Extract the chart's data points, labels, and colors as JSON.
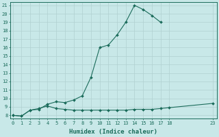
{
  "line1_x": [
    0,
    1,
    2,
    3,
    4,
    5,
    6,
    7,
    8,
    9,
    10,
    11,
    12,
    13,
    14,
    15,
    16,
    17
  ],
  "line1_y": [
    8,
    7.9,
    8.6,
    8.7,
    9.3,
    9.6,
    9.5,
    9.8,
    10.3,
    12.5,
    16.0,
    16.3,
    17.5,
    19.0,
    21.0,
    20.5,
    19.8,
    19.0
  ],
  "line2_x": [
    0,
    1,
    2,
    3,
    4,
    5,
    6,
    7,
    8,
    9,
    10,
    11,
    12,
    13,
    14,
    15,
    16,
    17,
    18,
    23
  ],
  "line2_y": [
    8,
    7.9,
    8.6,
    8.8,
    9.1,
    8.8,
    8.7,
    8.6,
    8.6,
    8.6,
    8.6,
    8.6,
    8.6,
    8.6,
    8.7,
    8.7,
    8.7,
    8.8,
    8.9,
    9.4
  ],
  "line_color": "#1a6b5a",
  "bg_color": "#c8e8e8",
  "grid_major_color": "#b0d0d0",
  "grid_minor_color": "#c0dcdc",
  "xlabel": "Humidex (Indice chaleur)",
  "xlabel_fontsize": 6.5,
  "yticks": [
    8,
    9,
    10,
    11,
    12,
    13,
    14,
    15,
    16,
    17,
    18,
    19,
    20,
    21
  ],
  "xticks": [
    0,
    1,
    2,
    3,
    4,
    5,
    6,
    7,
    8,
    9,
    10,
    11,
    12,
    13,
    14,
    15,
    16,
    17,
    18,
    23
  ],
  "xtick_labels": [
    "0",
    "1",
    "2",
    "3",
    "4",
    "5",
    "6",
    "7",
    "8",
    "9",
    "10",
    "11",
    "12",
    "13",
    "14",
    "15",
    "16",
    "17",
    "18",
    "23"
  ],
  "xlim": [
    -0.3,
    23.5
  ],
  "ylim": [
    7.6,
    21.4
  ],
  "marker": "D",
  "markersize": 2.0,
  "linewidth": 0.8
}
